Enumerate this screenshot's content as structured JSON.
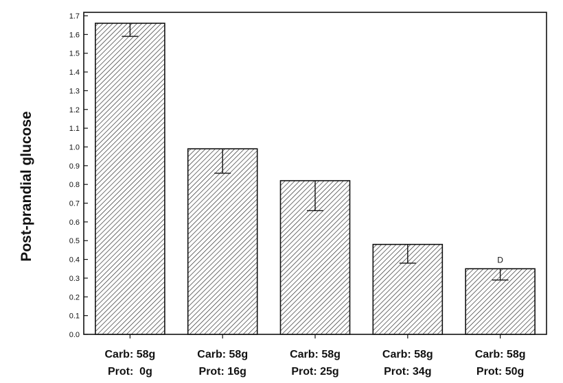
{
  "chart_data": {
    "type": "bar",
    "title": "",
    "xlabel": "",
    "ylabel": "Post-prandial glucose",
    "ylim": [
      0,
      1.7
    ],
    "yticks": [
      "0.0",
      "0.1",
      "0.2",
      "0.3",
      "0.4",
      "0.5",
      "0.6",
      "0.7",
      "0.8",
      "0.9",
      "1.0",
      "1.1",
      "1.2",
      "1.3",
      "1.4",
      "1.5",
      "1.6",
      "1.7"
    ],
    "categories": [
      {
        "line1": "Carb: 58g",
        "line2": "Prot:  0g"
      },
      {
        "line1": "Carb: 58g",
        "line2": "Prot: 16g"
      },
      {
        "line1": "Carb: 58g",
        "line2": "Prot: 25g"
      },
      {
        "line1": "Carb: 58g",
        "line2": "Prot: 34g"
      },
      {
        "line1": "Carb: 58g",
        "line2": "Prot: 50g"
      }
    ],
    "values": [
      1.66,
      0.99,
      0.82,
      0.48,
      0.35
    ],
    "error_lower": [
      1.59,
      0.86,
      0.66,
      0.38,
      0.29
    ],
    "annotations": [
      "",
      "",
      "",
      "",
      "D"
    ],
    "bar_fill": "hatched",
    "grid": false
  }
}
